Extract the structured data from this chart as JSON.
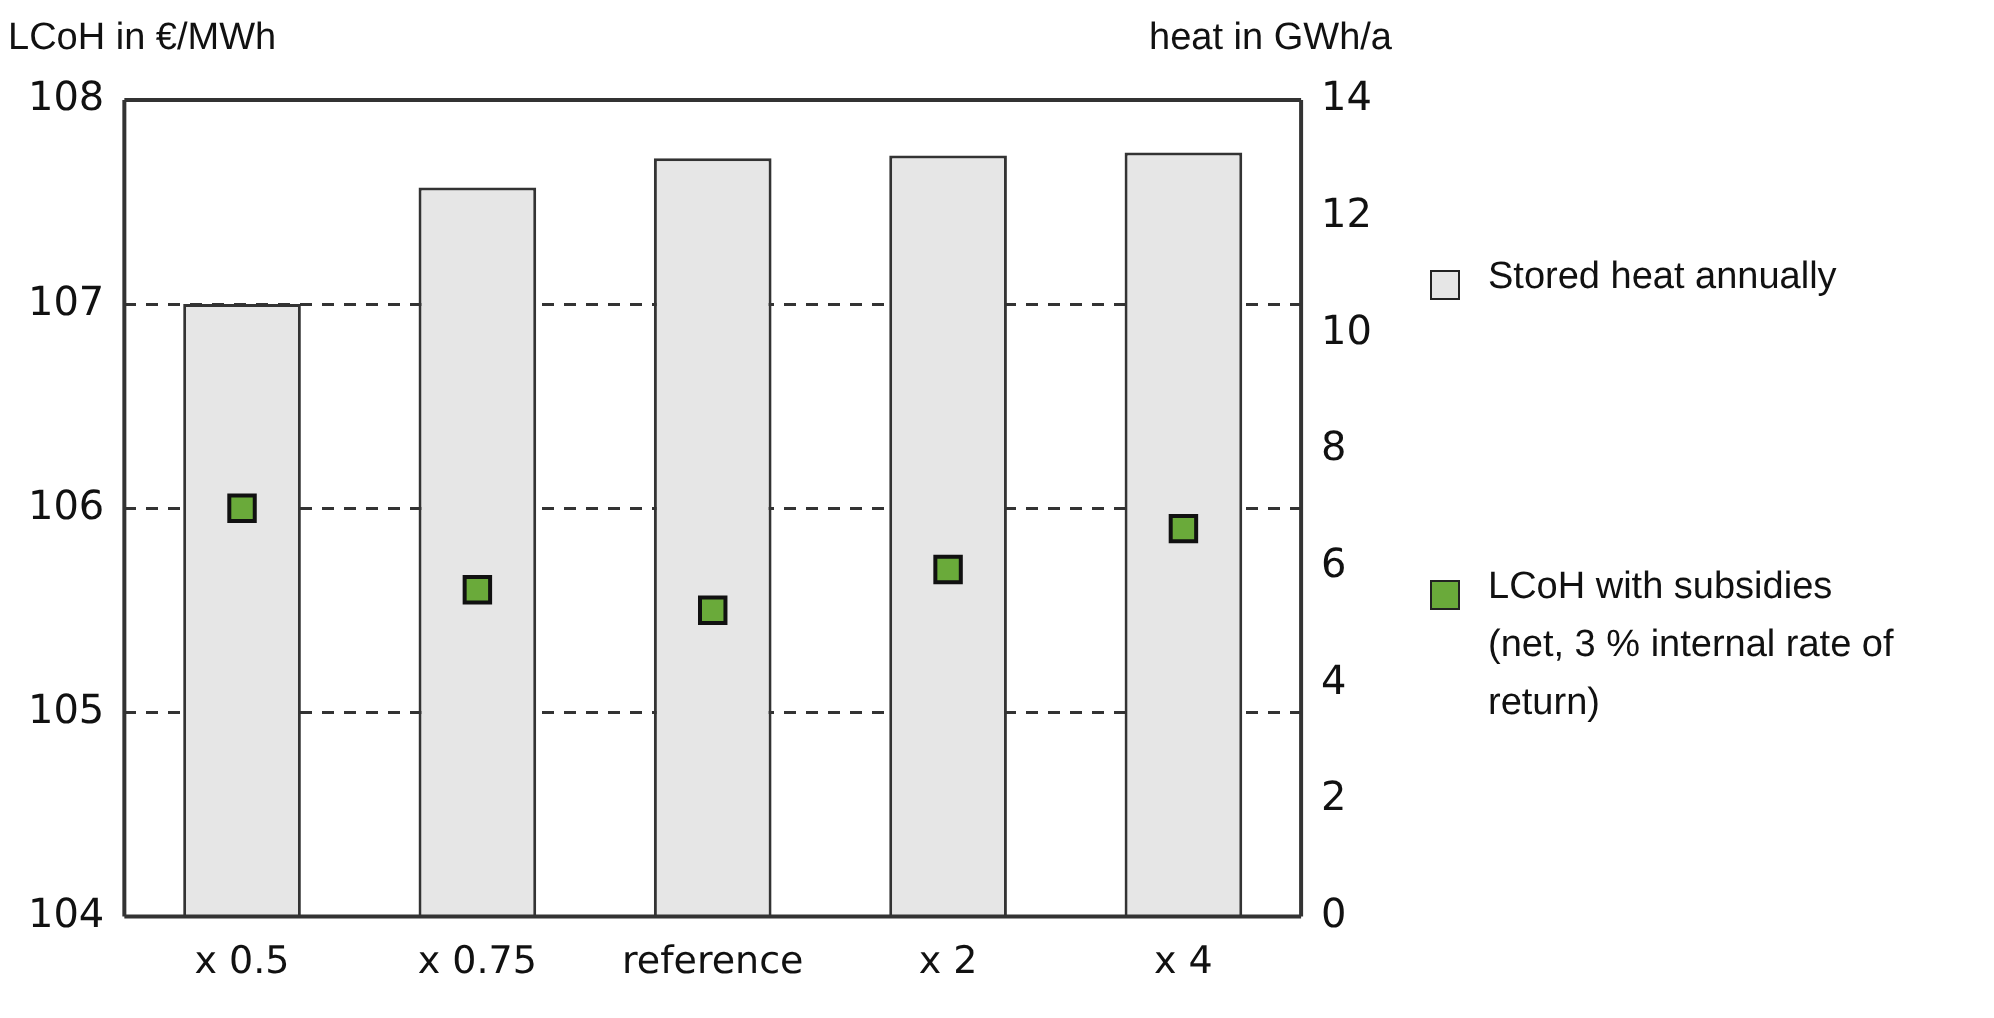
{
  "chart_data": {
    "type": "bar",
    "ylabel": "LCoH in €/MWh",
    "y2label": "heat in GWh/a",
    "categories": [
      "x 0.5",
      "x 0.75",
      "reference",
      "x 2",
      "x 4"
    ],
    "series": [
      {
        "name": "Stored heat annually",
        "axis": "y2",
        "color": "#e6e6e6",
        "values": [
          10.5,
          12.5,
          13.0,
          13.05,
          13.1
        ]
      },
      {
        "name": "LCoH with subsidies (net, 3 % internal rate of return)",
        "type": "scatter",
        "axis": "y",
        "color": "#6aaa3a",
        "marker": "square",
        "values": [
          106.0,
          105.6,
          105.5,
          105.7,
          105.9
        ]
      }
    ],
    "ylim": [
      104,
      108
    ],
    "yticks": [
      104,
      105,
      106,
      107,
      108
    ],
    "y2lim": [
      0,
      14
    ],
    "y2ticks": [
      0,
      2,
      4,
      6,
      8,
      10,
      12,
      14
    ],
    "grid": "y",
    "legend": "right"
  }
}
